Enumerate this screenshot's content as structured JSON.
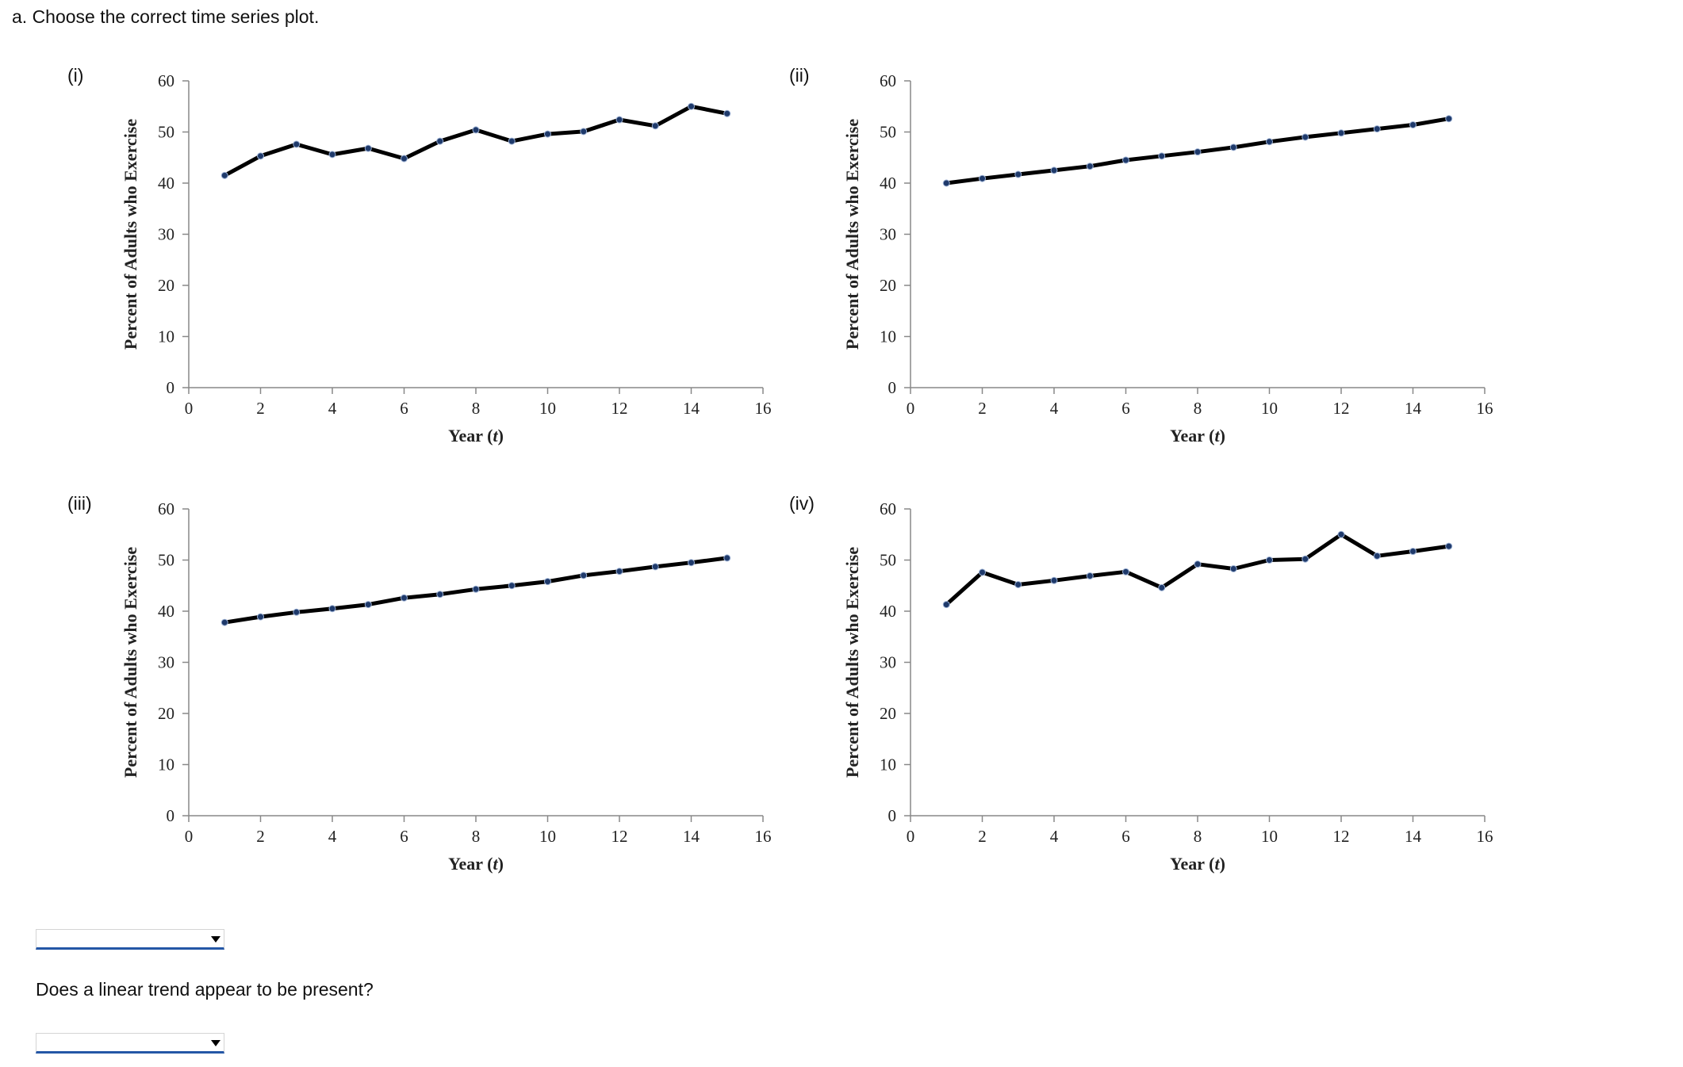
{
  "question": "a. Choose the correct time series plot.",
  "followup": "Does a linear trend appear to be present?",
  "dropdown_1": {
    "value": ""
  },
  "dropdown_2": {
    "value": ""
  },
  "colors": {
    "line": "#000000",
    "marker": "#1f3a6b",
    "axis": "#888888",
    "dropdown_underline": "#2457a6"
  },
  "chart_data": [
    {
      "id": "i",
      "panel_label": "(i)",
      "type": "line",
      "xlabel": "Year (t)",
      "ylabel": "Percent of Adults who Exercise",
      "xlim": [
        0,
        16
      ],
      "ylim": [
        0,
        60
      ],
      "xticks": [
        0,
        2,
        4,
        6,
        8,
        10,
        12,
        14,
        16
      ],
      "yticks": [
        0,
        10,
        20,
        30,
        40,
        50,
        60
      ],
      "x": [
        1,
        2,
        3,
        4,
        5,
        6,
        7,
        8,
        9,
        10,
        11,
        12,
        13,
        14,
        15
      ],
      "y": [
        41.5,
        45.3,
        47.6,
        45.6,
        46.8,
        44.8,
        48.2,
        50.4,
        48.2,
        49.6,
        50.1,
        52.4,
        51.2,
        55.0,
        53.6
      ]
    },
    {
      "id": "ii",
      "panel_label": "(ii)",
      "type": "line",
      "xlabel": "Year (t)",
      "ylabel": "Percent of Adults who Exercise",
      "xlim": [
        0,
        16
      ],
      "ylim": [
        0,
        60
      ],
      "xticks": [
        0,
        2,
        4,
        6,
        8,
        10,
        12,
        14,
        16
      ],
      "yticks": [
        0,
        10,
        20,
        30,
        40,
        50,
        60
      ],
      "x": [
        1,
        2,
        3,
        4,
        5,
        6,
        7,
        8,
        9,
        10,
        11,
        12,
        13,
        14,
        15
      ],
      "y": [
        40.0,
        40.9,
        41.7,
        42.5,
        43.3,
        44.5,
        45.3,
        46.1,
        47.0,
        48.1,
        49.0,
        49.8,
        50.6,
        51.4,
        52.6
      ]
    },
    {
      "id": "iii",
      "panel_label": "(iii)",
      "type": "line",
      "xlabel": "Year (t)",
      "ylabel": "Percent of Adults who Exercise",
      "xlim": [
        0,
        16
      ],
      "ylim": [
        0,
        60
      ],
      "xticks": [
        0,
        2,
        4,
        6,
        8,
        10,
        12,
        14,
        16
      ],
      "yticks": [
        0,
        10,
        20,
        30,
        40,
        50,
        60
      ],
      "x": [
        1,
        2,
        3,
        4,
        5,
        6,
        7,
        8,
        9,
        10,
        11,
        12,
        13,
        14,
        15
      ],
      "y": [
        37.8,
        38.9,
        39.8,
        40.5,
        41.3,
        42.6,
        43.3,
        44.3,
        45.0,
        45.8,
        47.0,
        47.8,
        48.7,
        49.5,
        50.4
      ]
    },
    {
      "id": "iv",
      "panel_label": "(iv)",
      "type": "line",
      "xlabel": "Year (t)",
      "ylabel": "Percent of Adults who Exercise",
      "xlim": [
        0,
        16
      ],
      "ylim": [
        0,
        60
      ],
      "xticks": [
        0,
        2,
        4,
        6,
        8,
        10,
        12,
        14,
        16
      ],
      "yticks": [
        0,
        10,
        20,
        30,
        40,
        50,
        60
      ],
      "x": [
        1,
        2,
        3,
        4,
        5,
        6,
        7,
        8,
        9,
        10,
        11,
        12,
        13,
        14,
        15
      ],
      "y": [
        41.3,
        47.6,
        45.2,
        46.0,
        46.9,
        47.7,
        44.6,
        49.2,
        48.3,
        50.0,
        50.2,
        55.0,
        50.8,
        51.7,
        52.7
      ]
    }
  ]
}
